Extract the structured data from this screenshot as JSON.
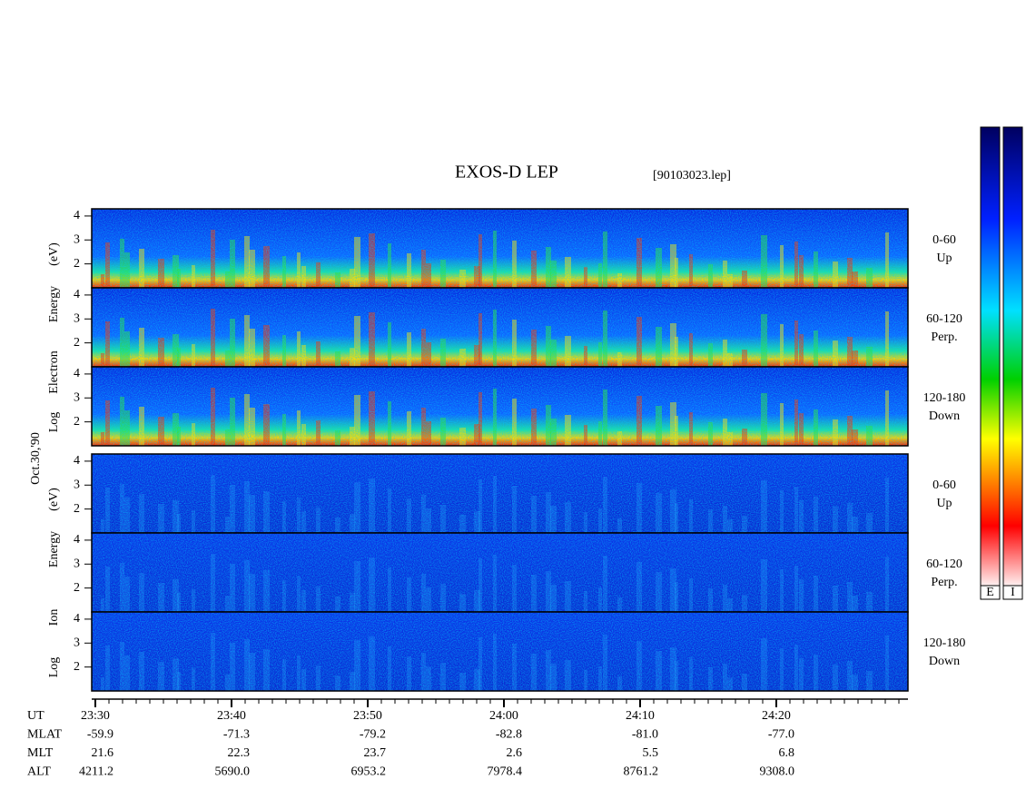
{
  "title": "EXOS-D LEP",
  "file": "[90103023.lep]",
  "date": "Oct.30,'90",
  "groups": [
    {
      "ylabel": [
        "Log",
        "Electron",
        "Energy",
        "(eV)"
      ],
      "panels": [
        {
          "label": "0-60",
          "sublabel": "Up",
          "ylim": [
            1,
            4.3
          ],
          "yticks": [
            2,
            3,
            4
          ]
        },
        {
          "label": "60-120",
          "sublabel": "Perp.",
          "ylim": [
            1,
            4.3
          ],
          "yticks": [
            2,
            3,
            4
          ]
        },
        {
          "label": "120-180",
          "sublabel": "Down",
          "ylim": [
            1,
            4.3
          ],
          "yticks": [
            2,
            3,
            4
          ]
        }
      ]
    },
    {
      "ylabel": [
        "Log",
        "Ion",
        "Energy",
        "(eV)"
      ],
      "panels": [
        {
          "label": "0-60",
          "sublabel": "Up",
          "ylim": [
            1,
            4.3
          ],
          "yticks": [
            2,
            3,
            4
          ]
        },
        {
          "label": "60-120",
          "sublabel": "Perp.",
          "ylim": [
            1,
            4.3
          ],
          "yticks": [
            2,
            3,
            4
          ]
        },
        {
          "label": "120-180",
          "sublabel": "Down",
          "ylim": [
            1,
            4.3
          ],
          "yticks": [
            2,
            3,
            4
          ]
        }
      ]
    }
  ],
  "ephemeris": [
    {
      "name": "UT",
      "values": [
        "23:30",
        "23:40",
        "23:50",
        "24:00",
        "24:10",
        "24:20"
      ]
    },
    {
      "name": "MLAT",
      "values": [
        "-59.9",
        "-71.3",
        "-79.2",
        "-82.8",
        "-81.0",
        "-77.0"
      ]
    },
    {
      "name": "MLT",
      "values": [
        "21.6",
        "22.3",
        "23.7",
        "2.6",
        "5.5",
        "6.8"
      ]
    },
    {
      "name": "ALT",
      "values": [
        "4211.2",
        "5690.0",
        "6953.2",
        "7978.4",
        "8761.2",
        "9308.0"
      ]
    }
  ],
  "colorbars": [
    "E",
    "I"
  ]
}
